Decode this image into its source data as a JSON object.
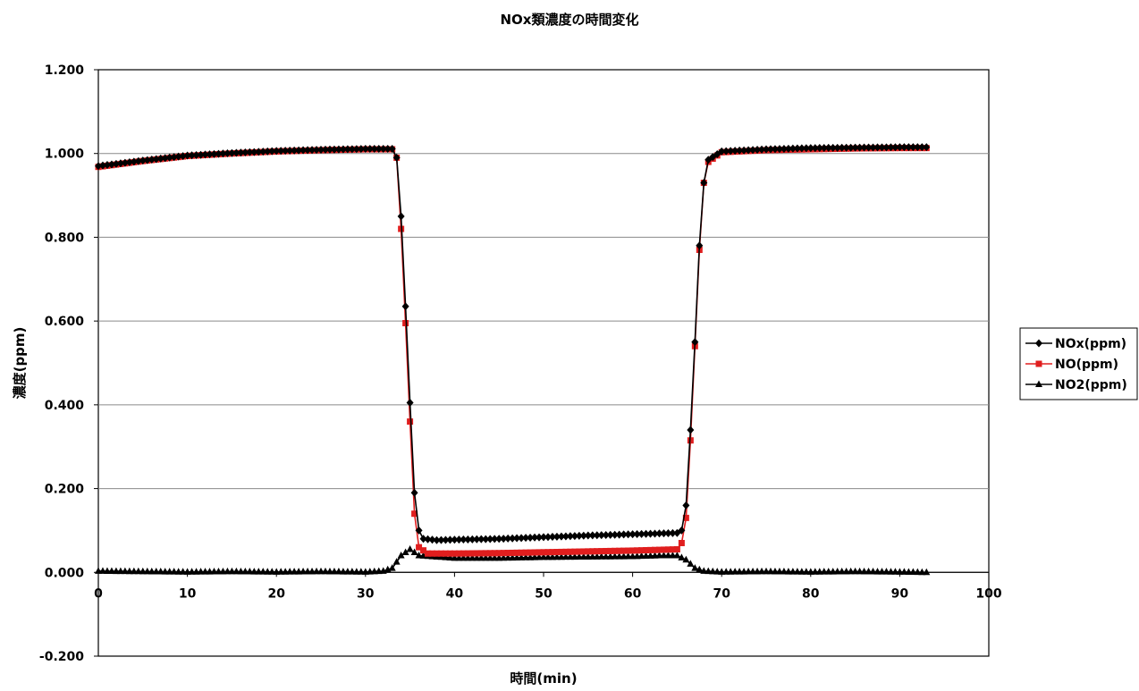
{
  "chart_data": {
    "type": "line",
    "title": "NOx類濃度の時間変化",
    "xlabel": "時間(min)",
    "ylabel": "濃度(ppm)",
    "xlim": [
      0,
      100
    ],
    "ylim": [
      -0.2,
      1.2
    ],
    "x_ticks": [
      "0",
      "10",
      "20",
      "30",
      "40",
      "50",
      "60",
      "70",
      "80",
      "90",
      "100"
    ],
    "y_ticks": [
      "1.200",
      "1.000",
      "0.800",
      "0.600",
      "0.400",
      "0.200",
      "0.000",
      "-0.200"
    ],
    "grid": "horizontal",
    "legend_position": "right",
    "series": [
      {
        "name": "NOx(ppm)",
        "color": "#000000",
        "marker": "diamond",
        "points": [
          [
            0,
            0.97
          ],
          [
            5,
            0.983
          ],
          [
            10,
            0.995
          ],
          [
            15,
            1.001
          ],
          [
            20,
            1.006
          ],
          [
            25,
            1.009
          ],
          [
            30,
            1.011
          ],
          [
            33,
            1.011
          ],
          [
            33.5,
            0.99
          ],
          [
            34,
            0.85
          ],
          [
            34.5,
            0.635
          ],
          [
            35,
            0.405
          ],
          [
            35.5,
            0.19
          ],
          [
            36,
            0.1
          ],
          [
            36.5,
            0.08
          ],
          [
            38,
            0.077
          ],
          [
            40,
            0.078
          ],
          [
            45,
            0.08
          ],
          [
            50,
            0.084
          ],
          [
            55,
            0.088
          ],
          [
            60,
            0.091
          ],
          [
            65,
            0.094
          ],
          [
            65.5,
            0.1
          ],
          [
            66,
            0.16
          ],
          [
            66.5,
            0.34
          ],
          [
            67,
            0.55
          ],
          [
            67.5,
            0.78
          ],
          [
            68,
            0.93
          ],
          [
            68.5,
            0.985
          ],
          [
            70,
            1.005
          ],
          [
            75,
            1.01
          ],
          [
            80,
            1.013
          ],
          [
            85,
            1.014
          ],
          [
            90,
            1.015
          ],
          [
            93,
            1.015
          ]
        ]
      },
      {
        "name": "NO(ppm)",
        "color": "#e01e1e",
        "marker": "square",
        "points": [
          [
            0,
            0.968
          ],
          [
            5,
            0.982
          ],
          [
            10,
            0.994
          ],
          [
            15,
            1.0
          ],
          [
            20,
            1.005
          ],
          [
            25,
            1.008
          ],
          [
            30,
            1.01
          ],
          [
            33,
            1.01
          ],
          [
            33.5,
            0.99
          ],
          [
            34,
            0.82
          ],
          [
            34.5,
            0.595
          ],
          [
            35,
            0.36
          ],
          [
            35.5,
            0.14
          ],
          [
            36,
            0.06
          ],
          [
            37,
            0.045
          ],
          [
            40,
            0.045
          ],
          [
            45,
            0.046
          ],
          [
            50,
            0.048
          ],
          [
            55,
            0.05
          ],
          [
            60,
            0.052
          ],
          [
            65,
            0.055
          ],
          [
            65.5,
            0.07
          ],
          [
            66,
            0.13
          ],
          [
            66.5,
            0.315
          ],
          [
            67,
            0.54
          ],
          [
            67.5,
            0.77
          ],
          [
            68,
            0.93
          ],
          [
            68.5,
            0.98
          ],
          [
            70,
            1.003
          ],
          [
            75,
            1.008
          ],
          [
            80,
            1.01
          ],
          [
            85,
            1.012
          ],
          [
            90,
            1.013
          ],
          [
            93,
            1.013
          ]
        ]
      },
      {
        "name": "NO2(ppm)",
        "color": "#000000",
        "marker": "triangle",
        "points": [
          [
            0,
            0.003
          ],
          [
            5,
            0.002
          ],
          [
            10,
            0.001
          ],
          [
            15,
            0.002
          ],
          [
            20,
            0.001
          ],
          [
            25,
            0.002
          ],
          [
            30,
            0.001
          ],
          [
            32,
            0.003
          ],
          [
            33,
            0.01
          ],
          [
            34,
            0.04
          ],
          [
            35,
            0.055
          ],
          [
            36,
            0.04
          ],
          [
            40,
            0.034
          ],
          [
            45,
            0.034
          ],
          [
            50,
            0.036
          ],
          [
            55,
            0.037
          ],
          [
            60,
            0.038
          ],
          [
            63,
            0.04
          ],
          [
            65,
            0.04
          ],
          [
            66,
            0.03
          ],
          [
            67,
            0.01
          ],
          [
            68,
            0.003
          ],
          [
            70,
            0.001
          ],
          [
            75,
            0.002
          ],
          [
            80,
            0.001
          ],
          [
            85,
            0.002
          ],
          [
            90,
            0.001
          ],
          [
            93,
            0.0
          ]
        ]
      }
    ]
  }
}
